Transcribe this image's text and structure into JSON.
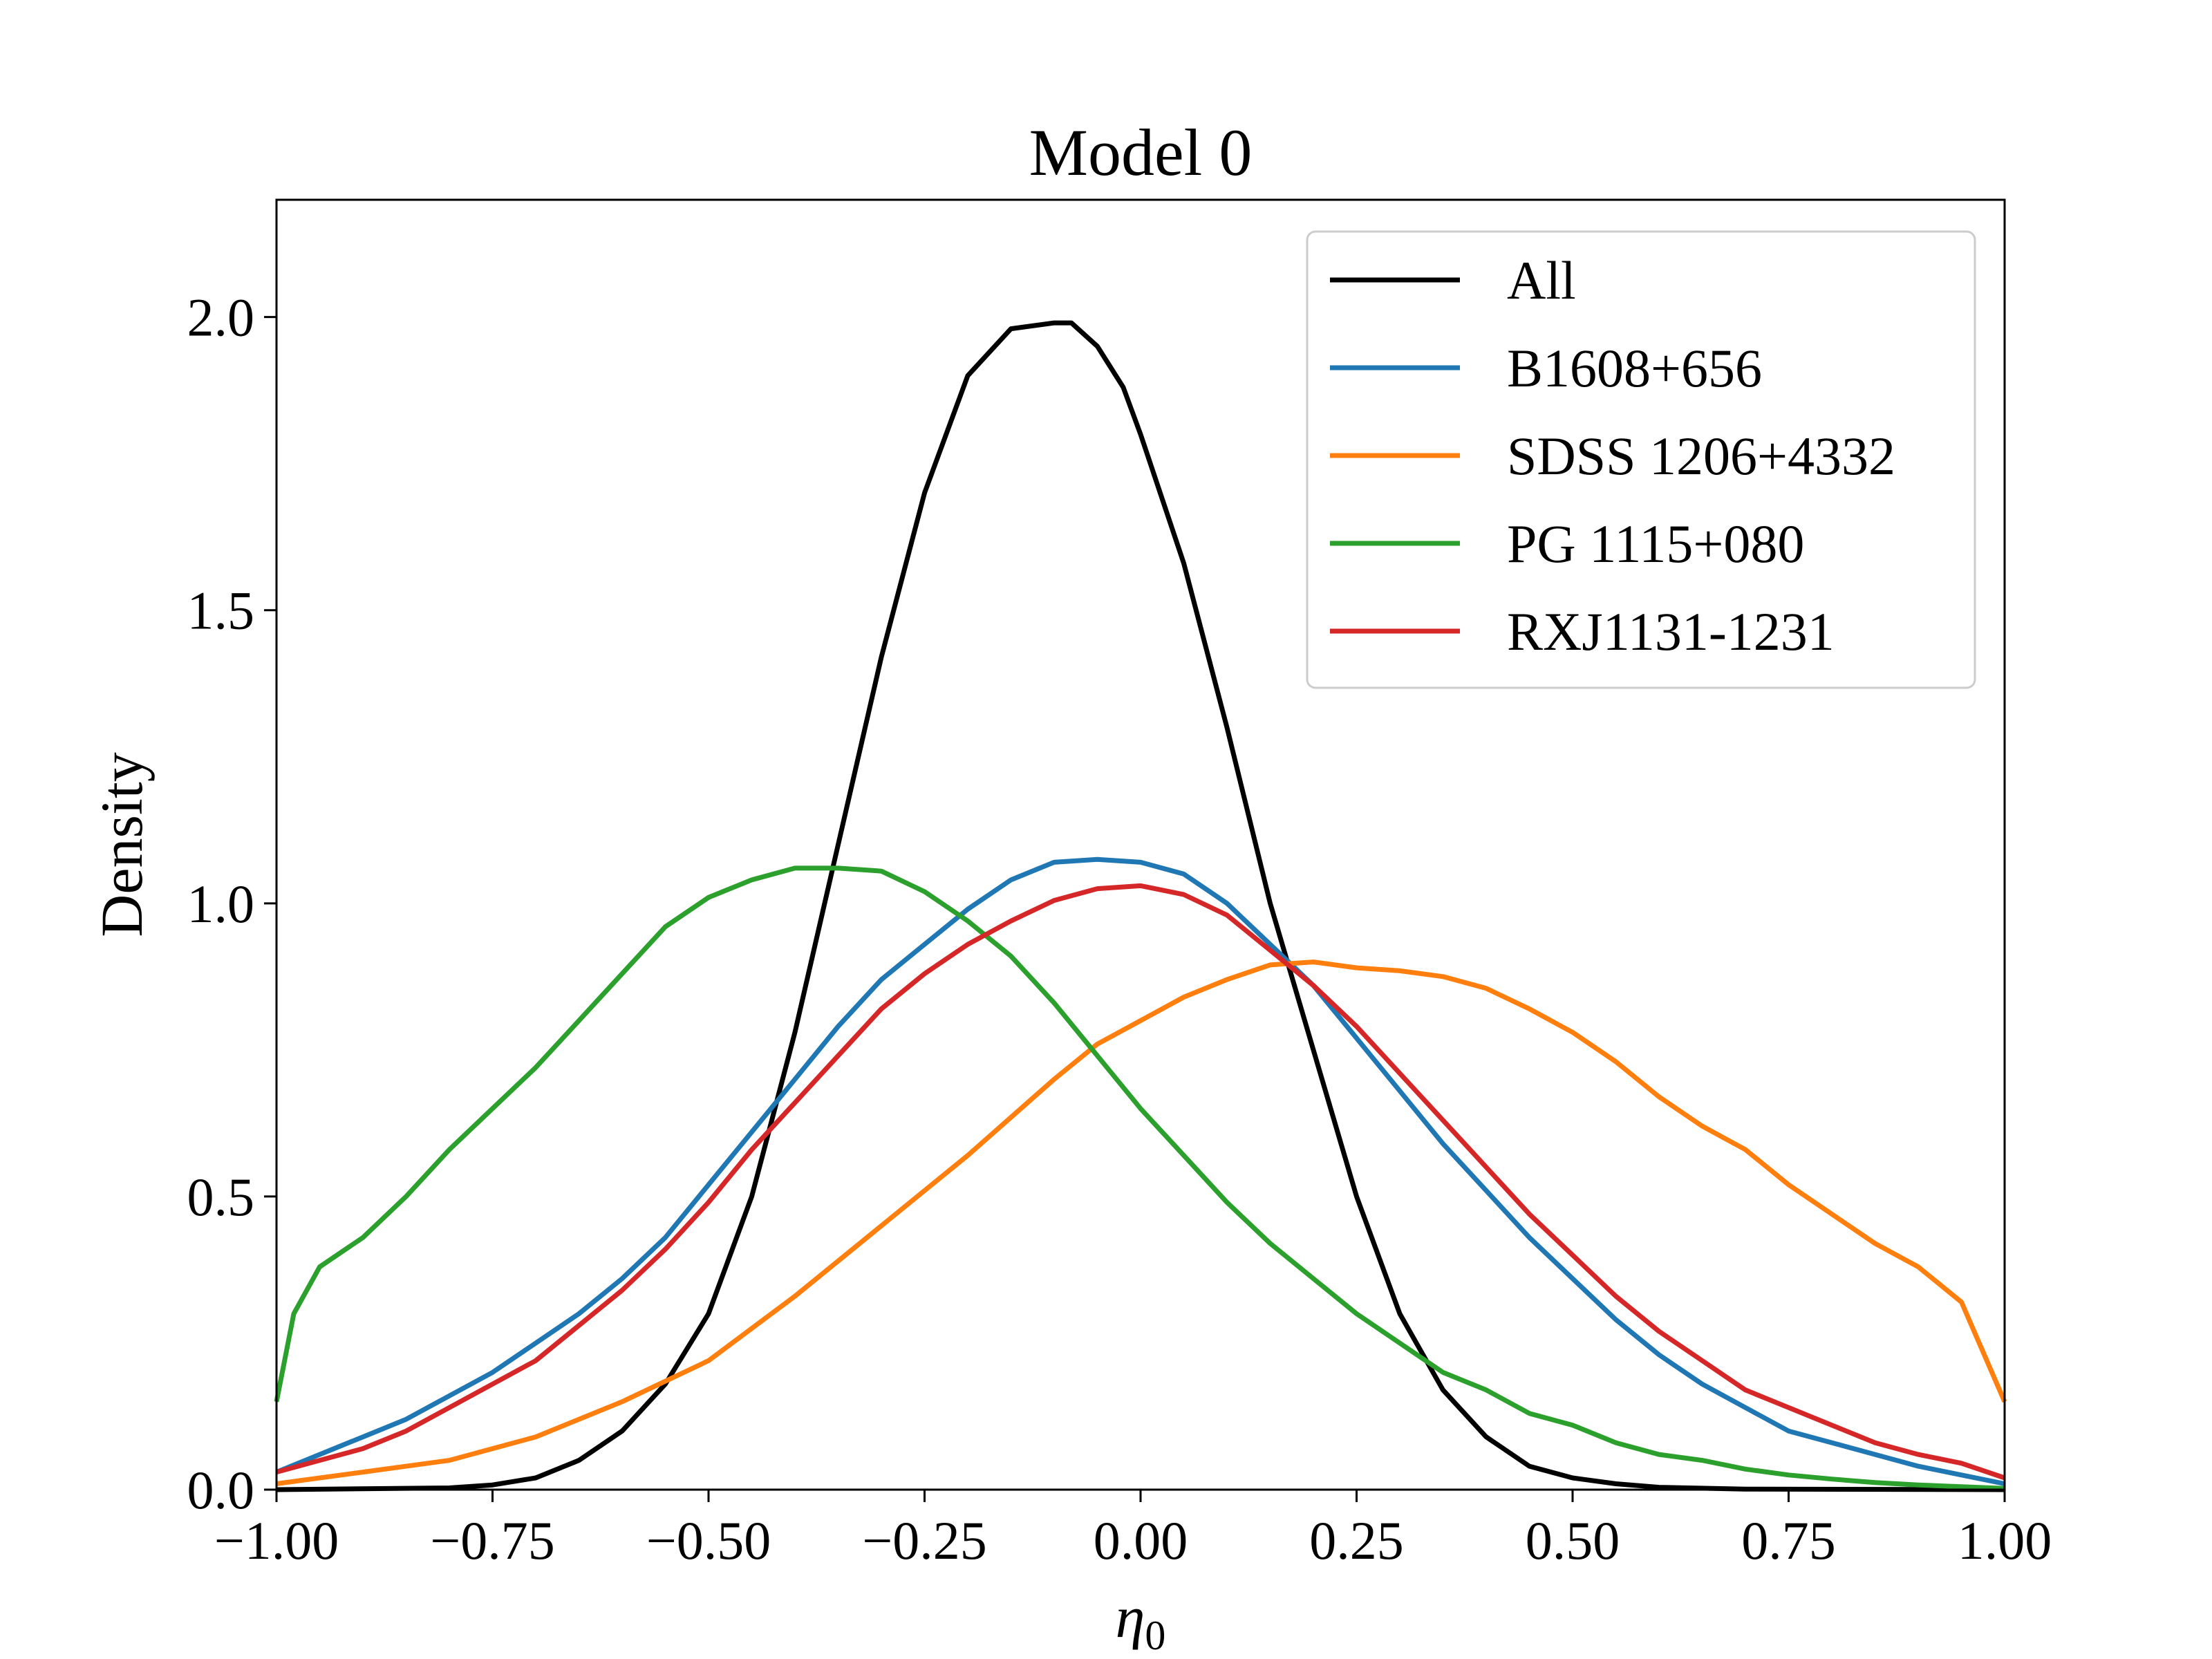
{
  "chart_data": {
    "type": "line",
    "title": "Model 0",
    "xlabel": "η",
    "xlabel_subscript": "0",
    "ylabel": "Density",
    "xlim": [
      -1.0,
      1.0
    ],
    "ylim": [
      0.0,
      2.2
    ],
    "xticks": [
      -1.0,
      -0.75,
      -0.5,
      -0.25,
      0.0,
      0.25,
      0.5,
      0.75,
      1.0
    ],
    "xtick_labels": [
      "−1.00",
      "−0.75",
      "−0.50",
      "−0.25",
      "0.00",
      "0.25",
      "0.50",
      "0.75",
      "1.00"
    ],
    "yticks": [
      0.0,
      0.5,
      1.0,
      1.5,
      2.0
    ],
    "ytick_labels": [
      "0.0",
      "0.5",
      "1.0",
      "1.5",
      "2.0"
    ],
    "grid": false,
    "legend_position": "top-right",
    "series": [
      {
        "name": "All",
        "color": "#000000",
        "x": [
          -1.0,
          -0.8,
          -0.75,
          -0.7,
          -0.65,
          -0.6,
          -0.55,
          -0.5,
          -0.45,
          -0.4,
          -0.35,
          -0.3,
          -0.25,
          -0.2,
          -0.15,
          -0.1,
          -0.08,
          -0.05,
          -0.02,
          0.0,
          0.05,
          0.1,
          0.15,
          0.2,
          0.25,
          0.3,
          0.35,
          0.4,
          0.45,
          0.5,
          0.55,
          0.6,
          0.7,
          1.0
        ],
        "values": [
          0.0,
          0.003,
          0.008,
          0.02,
          0.05,
          0.1,
          0.18,
          0.3,
          0.5,
          0.78,
          1.1,
          1.42,
          1.7,
          1.9,
          1.98,
          1.99,
          1.99,
          1.95,
          1.88,
          1.8,
          1.58,
          1.3,
          1.0,
          0.75,
          0.5,
          0.3,
          0.17,
          0.09,
          0.04,
          0.02,
          0.01,
          0.004,
          0.001,
          0.0
        ]
      },
      {
        "name": "B1608+656",
        "color": "#1f77b4",
        "x": [
          -1.0,
          -0.95,
          -0.9,
          -0.85,
          -0.8,
          -0.75,
          -0.7,
          -0.65,
          -0.6,
          -0.55,
          -0.5,
          -0.45,
          -0.4,
          -0.35,
          -0.3,
          -0.25,
          -0.2,
          -0.15,
          -0.1,
          -0.05,
          0.0,
          0.05,
          0.1,
          0.15,
          0.2,
          0.25,
          0.3,
          0.35,
          0.4,
          0.45,
          0.5,
          0.55,
          0.6,
          0.65,
          0.7,
          0.75,
          0.8,
          0.85,
          0.9,
          0.95,
          1.0
        ],
        "values": [
          0.03,
          0.06,
          0.09,
          0.12,
          0.16,
          0.2,
          0.25,
          0.3,
          0.36,
          0.43,
          0.52,
          0.61,
          0.7,
          0.79,
          0.87,
          0.93,
          0.99,
          1.04,
          1.07,
          1.075,
          1.07,
          1.05,
          1.0,
          0.93,
          0.86,
          0.77,
          0.68,
          0.59,
          0.51,
          0.43,
          0.36,
          0.29,
          0.23,
          0.18,
          0.14,
          0.1,
          0.08,
          0.06,
          0.04,
          0.025,
          0.01
        ]
      },
      {
        "name": "SDSS 1206+4332",
        "color": "#ff7f0e",
        "x": [
          -1.0,
          -0.9,
          -0.8,
          -0.7,
          -0.6,
          -0.5,
          -0.4,
          -0.3,
          -0.2,
          -0.1,
          -0.05,
          0.0,
          0.05,
          0.1,
          0.15,
          0.2,
          0.25,
          0.3,
          0.35,
          0.4,
          0.45,
          0.5,
          0.55,
          0.6,
          0.65,
          0.7,
          0.75,
          0.8,
          0.85,
          0.9,
          0.95,
          1.0
        ],
        "values": [
          0.01,
          0.03,
          0.05,
          0.09,
          0.15,
          0.22,
          0.33,
          0.45,
          0.57,
          0.7,
          0.76,
          0.8,
          0.84,
          0.87,
          0.895,
          0.9,
          0.89,
          0.885,
          0.875,
          0.855,
          0.82,
          0.78,
          0.73,
          0.67,
          0.62,
          0.58,
          0.52,
          0.47,
          0.42,
          0.38,
          0.32,
          0.15
        ]
      },
      {
        "name": "PG 1115+080",
        "color": "#2ca02c",
        "x": [
          -1.0,
          -0.98,
          -0.95,
          -0.9,
          -0.85,
          -0.8,
          -0.75,
          -0.7,
          -0.65,
          -0.6,
          -0.55,
          -0.5,
          -0.45,
          -0.4,
          -0.35,
          -0.3,
          -0.25,
          -0.2,
          -0.15,
          -0.1,
          -0.05,
          0.0,
          0.05,
          0.1,
          0.15,
          0.2,
          0.25,
          0.3,
          0.35,
          0.4,
          0.45,
          0.5,
          0.55,
          0.6,
          0.65,
          0.7,
          0.75,
          0.8,
          0.85,
          0.9,
          0.95,
          1.0
        ],
        "values": [
          0.15,
          0.3,
          0.38,
          0.43,
          0.5,
          0.58,
          0.65,
          0.72,
          0.8,
          0.88,
          0.96,
          1.01,
          1.04,
          1.06,
          1.06,
          1.055,
          1.02,
          0.97,
          0.91,
          0.83,
          0.74,
          0.65,
          0.57,
          0.49,
          0.42,
          0.36,
          0.3,
          0.25,
          0.2,
          0.17,
          0.13,
          0.11,
          0.08,
          0.06,
          0.05,
          0.035,
          0.025,
          0.018,
          0.012,
          0.008,
          0.005,
          0.002
        ]
      },
      {
        "name": "RXJ1131-1231",
        "color": "#d62728",
        "x": [
          -1.0,
          -0.95,
          -0.9,
          -0.85,
          -0.8,
          -0.75,
          -0.7,
          -0.65,
          -0.6,
          -0.55,
          -0.5,
          -0.45,
          -0.4,
          -0.35,
          -0.3,
          -0.25,
          -0.2,
          -0.15,
          -0.1,
          -0.05,
          0.0,
          0.05,
          0.1,
          0.15,
          0.2,
          0.25,
          0.3,
          0.35,
          0.4,
          0.45,
          0.5,
          0.55,
          0.6,
          0.65,
          0.7,
          0.75,
          0.8,
          0.85,
          0.9,
          0.95,
          1.0
        ],
        "values": [
          0.03,
          0.05,
          0.07,
          0.1,
          0.14,
          0.18,
          0.22,
          0.28,
          0.34,
          0.41,
          0.49,
          0.58,
          0.66,
          0.74,
          0.82,
          0.88,
          0.93,
          0.97,
          1.005,
          1.025,
          1.03,
          1.015,
          0.98,
          0.92,
          0.86,
          0.79,
          0.71,
          0.63,
          0.55,
          0.47,
          0.4,
          0.33,
          0.27,
          0.22,
          0.17,
          0.14,
          0.11,
          0.08,
          0.06,
          0.045,
          0.02
        ]
      }
    ]
  }
}
